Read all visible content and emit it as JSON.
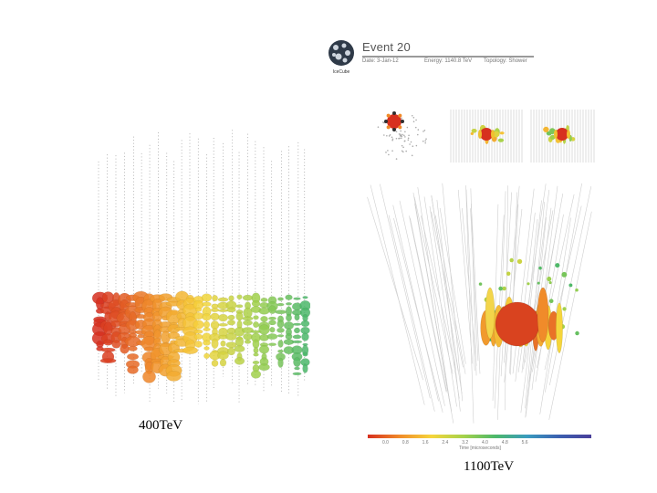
{
  "left_figure": {
    "caption": "400TeV"
  },
  "right_figure": {
    "caption": "1100TeV",
    "title": "Event 20",
    "logo_text": "IceCube",
    "date": "Date: 3-Jan-12",
    "energy": "Energy: 1140.8 TeV",
    "topology": "Topology: Shower",
    "colorbar": {
      "ticks": [
        "0.0",
        "0.8",
        "1.6",
        "2.4",
        "3.2",
        "4.0",
        "4.8",
        "5.6"
      ],
      "label": "Time [microseconds]"
    }
  }
}
